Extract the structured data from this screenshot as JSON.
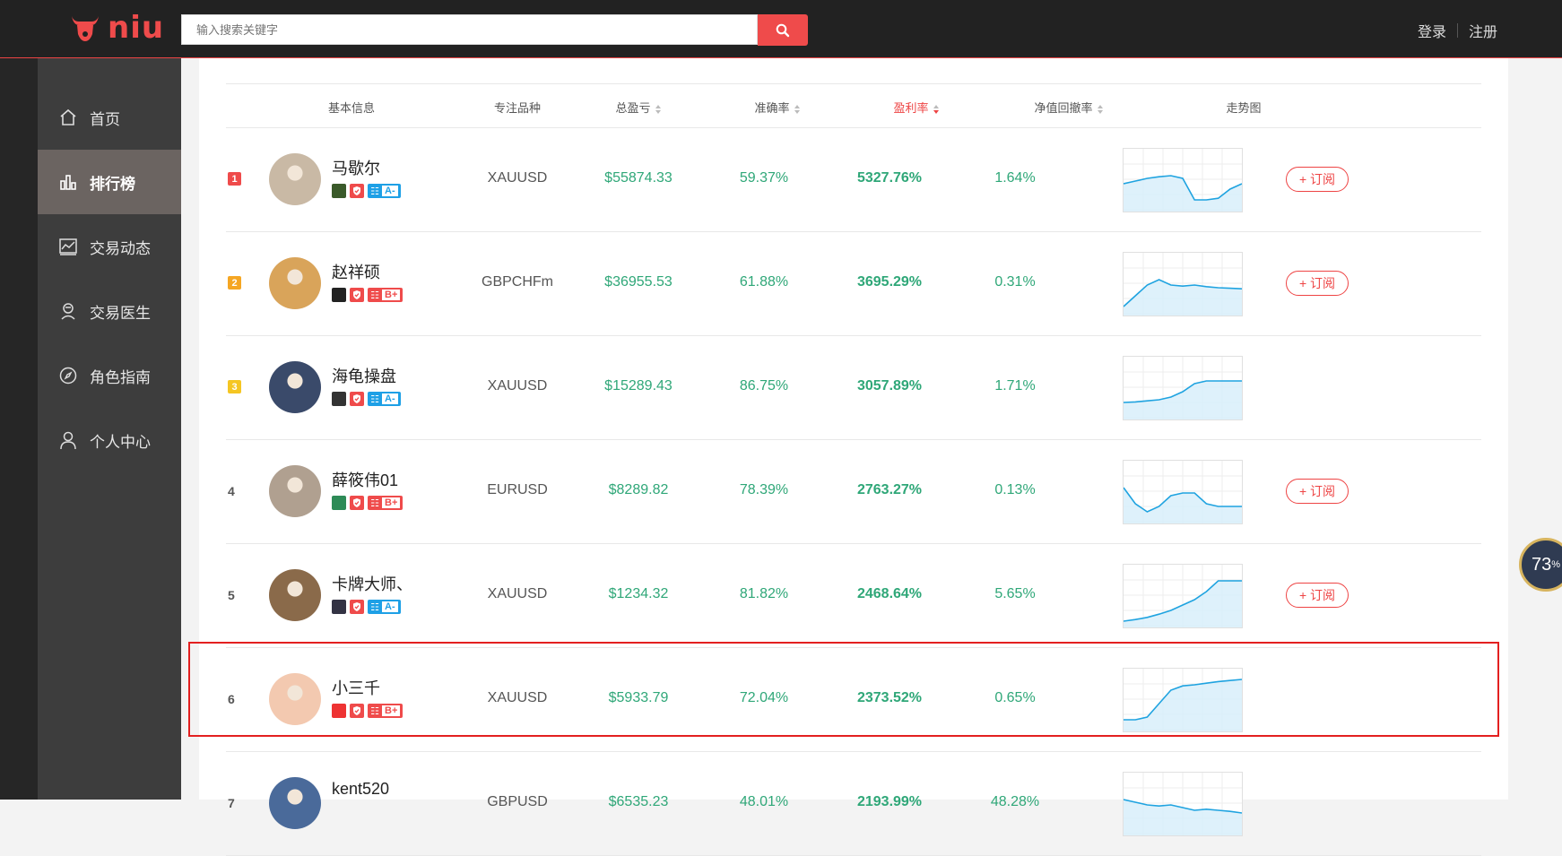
{
  "app": {
    "logo_text": "niu"
  },
  "search": {
    "placeholder": "输入搜索关键字"
  },
  "auth": {
    "login": "登录",
    "register": "注册"
  },
  "sidebar": {
    "items": [
      {
        "label": "首页",
        "icon": "home-icon",
        "active": false
      },
      {
        "label": "排行榜",
        "icon": "ranking-icon",
        "active": true
      },
      {
        "label": "交易动态",
        "icon": "chart-icon",
        "active": false
      },
      {
        "label": "交易医生",
        "icon": "doctor-icon",
        "active": false
      },
      {
        "label": "角色指南",
        "icon": "compass-icon",
        "active": false
      },
      {
        "label": "个人中心",
        "icon": "user-icon",
        "active": false
      }
    ]
  },
  "table": {
    "headers": {
      "info": "基本信息",
      "symbol": "专注品种",
      "profit": "总盈亏",
      "accuracy": "准确率",
      "rate": "盈利率",
      "drawdown": "净值回撤率",
      "trend": "走势图"
    },
    "subscribe_label": "+ 订阅",
    "rows": [
      {
        "rank": "1",
        "name": "马歇尔",
        "grade": "A-",
        "symbol": "XAUUSD",
        "profit": "$55874.33",
        "accuracy": "59.37%",
        "rate": "5327.76%",
        "drawdown": "1.64%",
        "subscribe": true
      },
      {
        "rank": "2",
        "name": "赵祥硕",
        "grade": "B+",
        "symbol": "GBPCHFm",
        "profit": "$36955.53",
        "accuracy": "61.88%",
        "rate": "3695.29%",
        "drawdown": "0.31%",
        "subscribe": true
      },
      {
        "rank": "3",
        "name": "海龟操盘",
        "grade": "A-",
        "symbol": "XAUUSD",
        "profit": "$15289.43",
        "accuracy": "86.75%",
        "rate": "3057.89%",
        "drawdown": "1.71%",
        "subscribe": false
      },
      {
        "rank": "4",
        "name": "薛筱伟01",
        "grade": "B+",
        "symbol": "EURUSD",
        "profit": "$8289.82",
        "accuracy": "78.39%",
        "rate": "2763.27%",
        "drawdown": "0.13%",
        "subscribe": true
      },
      {
        "rank": "5",
        "name": "卡牌大师、",
        "grade": "A-",
        "symbol": "XAUUSD",
        "profit": "$1234.32",
        "accuracy": "81.82%",
        "rate": "2468.64%",
        "drawdown": "5.65%",
        "subscribe": true
      },
      {
        "rank": "6",
        "name": "小三千",
        "grade": "B+",
        "symbol": "XAUUSD",
        "profit": "$5933.79",
        "accuracy": "72.04%",
        "rate": "2373.52%",
        "drawdown": "0.65%",
        "subscribe": false
      },
      {
        "rank": "7",
        "name": "kent520",
        "grade": "",
        "symbol": "GBPUSD",
        "profit": "$6535.23",
        "accuracy": "48.01%",
        "rate": "2193.99%",
        "drawdown": "48.28%",
        "subscribe": false
      }
    ]
  },
  "widget": {
    "gauge_value": "73"
  },
  "colors": {
    "accent": "#ef4b4b",
    "green": "#2fa778",
    "sidebar": "#3d3d3d",
    "active": "#6b6461",
    "spark_line": "#1fa3e0",
    "spark_fill": "#d6eefa"
  }
}
